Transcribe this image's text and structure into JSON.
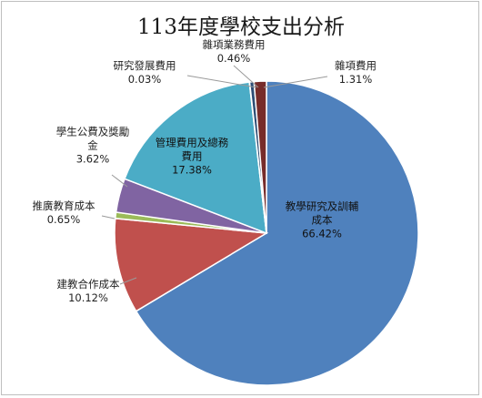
{
  "chart_data": {
    "type": "pie",
    "title": "113年度學校支出分析",
    "start_angle_deg": 0,
    "direction": "clockwise",
    "slices": [
      {
        "name": "教學研究及訓輔成本",
        "name_lines": [
          "教學研究及訓輔",
          "成本"
        ],
        "value": 66.42,
        "value_label": "66.42%",
        "color": "#4f81bd",
        "label_position": "inside"
      },
      {
        "name": "建教合作成本",
        "name_lines": [
          "建教合作成本"
        ],
        "value": 10.12,
        "value_label": "10.12%",
        "color": "#c0504d",
        "label_position": "outside"
      },
      {
        "name": "推廣教育成本",
        "name_lines": [
          "推廣教育成本"
        ],
        "value": 0.65,
        "value_label": "0.65%",
        "color": "#9bbb59",
        "label_position": "outside"
      },
      {
        "name": "學生公費及獎勵金",
        "name_lines": [
          "學生公費及獎勵",
          "金"
        ],
        "value": 3.62,
        "value_label": "3.62%",
        "color": "#8064a2",
        "label_position": "outside"
      },
      {
        "name": "管理費用及總務費用",
        "name_lines": [
          "管理費用及總務",
          "費用"
        ],
        "value": 17.38,
        "value_label": "17.38%",
        "color": "#4bacc6",
        "label_position": "inside"
      },
      {
        "name": "研究發展費用",
        "name_lines": [
          "研究發展費用"
        ],
        "value": 0.03,
        "value_label": "0.03%",
        "color": "#f79646",
        "label_position": "outside"
      },
      {
        "name": "雜項業務費用",
        "name_lines": [
          "雜項業務費用"
        ],
        "value": 0.46,
        "value_label": "0.46%",
        "color": "#2c4d75",
        "label_position": "outside"
      },
      {
        "name": "雜項費用",
        "name_lines": [
          "雜項費用"
        ],
        "value": 1.31,
        "value_label": "1.31%",
        "color": "#772c2a",
        "label_position": "outside"
      }
    ],
    "legend": "none"
  }
}
